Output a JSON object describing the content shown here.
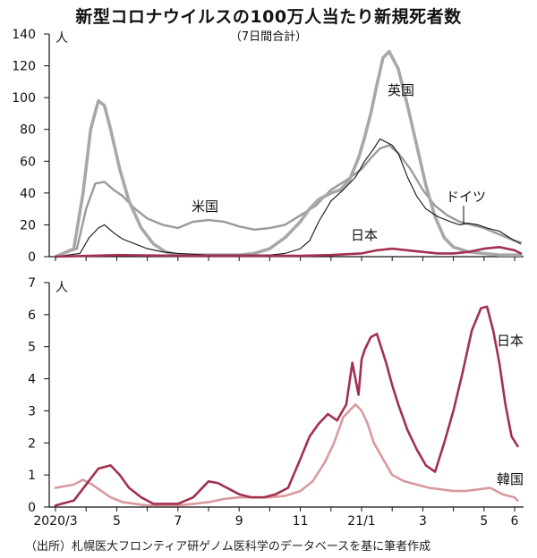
{
  "title": "新型コロナウイルスの100万人当たり新規死者数",
  "subtitle": "（7日間合計）",
  "source": "（出所）札幌医大フロンティア研ゲノム医科学のデータベースを基に筆者作成",
  "x_axis": {
    "labels": [
      "2020/3",
      "5",
      "7",
      "9",
      "11",
      "21/1",
      "3",
      "5",
      "6"
    ],
    "positions": [
      0,
      2,
      4,
      6,
      8,
      10,
      12,
      14,
      15
    ]
  },
  "colors": {
    "uk": "#a8a8a8",
    "us": "#9a9a9a",
    "germany": "#111111",
    "japan": "#a2304e",
    "korea": "#d99a9e"
  },
  "chart_data": [
    {
      "type": "line",
      "title": "",
      "ylabel": "人",
      "ylim": [
        0,
        140
      ],
      "yticks": [
        0,
        20,
        40,
        60,
        80,
        100,
        120,
        140
      ],
      "x_unit": "months since 2020/3",
      "series": [
        {
          "name": "英国",
          "color": "#a8a8a8",
          "x": [
            0,
            0.6,
            0.9,
            1.15,
            1.4,
            1.6,
            1.8,
            2.1,
            2.4,
            2.8,
            3.2,
            3.6,
            4.0,
            4.5,
            5.0,
            5.5,
            6.0,
            6.5,
            7.0,
            7.5,
            8.0,
            8.3,
            8.6,
            9.0,
            9.3,
            9.6,
            9.9,
            10.1,
            10.3,
            10.5,
            10.7,
            10.9,
            11.2,
            11.5,
            11.8,
            12.1,
            12.4,
            12.7,
            13.0,
            13.5,
            14.0,
            14.5,
            15.0,
            15.2
          ],
          "y": [
            0,
            5,
            40,
            80,
            98,
            95,
            80,
            55,
            35,
            18,
            8,
            3,
            1,
            1,
            1,
            1,
            1,
            2,
            5,
            12,
            22,
            30,
            36,
            40,
            42,
            48,
            62,
            75,
            90,
            108,
            125,
            129,
            118,
            95,
            70,
            45,
            25,
            12,
            6,
            3,
            2,
            1,
            1,
            1
          ]
        },
        {
          "name": "米国",
          "color": "#9a9a9a",
          "x": [
            0,
            0.7,
            1.0,
            1.3,
            1.6,
            1.9,
            2.2,
            2.6,
            3.0,
            3.5,
            4.0,
            4.5,
            5.0,
            5.5,
            6.0,
            6.5,
            7.0,
            7.5,
            8.0,
            8.5,
            9.0,
            9.5,
            10.0,
            10.3,
            10.6,
            10.9,
            11.2,
            11.6,
            12.0,
            12.4,
            12.8,
            13.2,
            13.6,
            14.0,
            14.5,
            15.0,
            15.2
          ],
          "y": [
            0,
            5,
            30,
            46,
            47,
            42,
            38,
            30,
            24,
            20,
            18,
            22,
            23,
            22,
            19,
            17,
            18,
            20,
            26,
            32,
            42,
            48,
            55,
            62,
            68,
            70,
            65,
            55,
            42,
            32,
            26,
            22,
            20,
            18,
            14,
            10,
            9
          ]
        },
        {
          "name": "ドイツ",
          "color": "#111111",
          "x": [
            0,
            0.8,
            1.1,
            1.4,
            1.6,
            1.9,
            2.2,
            2.6,
            3.0,
            3.5,
            4.0,
            5.0,
            6.0,
            7.0,
            7.5,
            8.0,
            8.3,
            8.6,
            9.0,
            9.4,
            9.8,
            10.1,
            10.4,
            10.6,
            10.8,
            11.0,
            11.2,
            11.5,
            11.8,
            12.1,
            12.5,
            12.9,
            13.2,
            13.5,
            13.8,
            14.1,
            14.5,
            15.0,
            15.2
          ],
          "y": [
            0,
            2,
            12,
            18,
            20,
            15,
            11,
            8,
            5,
            3,
            2,
            1,
            1,
            1,
            2,
            5,
            10,
            22,
            35,
            42,
            50,
            60,
            68,
            74,
            72,
            70,
            65,
            50,
            38,
            30,
            25,
            22,
            20,
            21,
            20,
            18,
            16,
            10,
            8
          ]
        },
        {
          "name": "日本",
          "color": "#a2304e",
          "x": [
            0,
            2,
            4,
            5,
            6,
            8,
            9,
            10,
            10.5,
            11,
            11.5,
            12,
            12.5,
            13,
            13.5,
            14,
            14.5,
            15,
            15.2
          ],
          "y": [
            0,
            1,
            0.5,
            0.5,
            0.5,
            0.5,
            1,
            2,
            4,
            5,
            4,
            3,
            2,
            2,
            3,
            5,
            6,
            4,
            2
          ]
        }
      ]
    },
    {
      "type": "line",
      "title": "",
      "ylabel": "人",
      "ylim": [
        0,
        7
      ],
      "yticks": [
        0,
        1,
        2,
        3,
        4,
        5,
        6,
        7
      ],
      "x_unit": "months since 2020/3",
      "series": [
        {
          "name": "日本",
          "color": "#a2304e",
          "x": [
            0,
            0.6,
            1.0,
            1.4,
            1.8,
            2.1,
            2.4,
            2.8,
            3.2,
            3.6,
            4.0,
            4.5,
            5.0,
            5.3,
            5.6,
            6.0,
            6.4,
            6.8,
            7.2,
            7.6,
            8.0,
            8.3,
            8.6,
            8.9,
            9.2,
            9.5,
            9.7,
            9.9,
            10.0,
            10.1,
            10.3,
            10.5,
            10.8,
            11.0,
            11.2,
            11.5,
            11.8,
            12.1,
            12.4,
            12.7,
            13.0,
            13.3,
            13.6,
            13.9,
            14.1,
            14.3,
            14.5,
            14.7,
            14.9,
            15.1
          ],
          "y": [
            0.05,
            0.2,
            0.7,
            1.2,
            1.3,
            1.0,
            0.6,
            0.3,
            0.1,
            0.1,
            0.1,
            0.3,
            0.8,
            0.75,
            0.6,
            0.4,
            0.3,
            0.3,
            0.4,
            0.6,
            1.5,
            2.2,
            2.6,
            2.9,
            2.7,
            3.2,
            4.5,
            3.5,
            4.6,
            4.9,
            5.3,
            5.4,
            4.5,
            3.8,
            3.2,
            2.4,
            1.8,
            1.3,
            1.1,
            2.0,
            3.0,
            4.2,
            5.5,
            6.2,
            6.25,
            5.5,
            4.5,
            3.2,
            2.2,
            1.9
          ]
        },
        {
          "name": "韓国",
          "color": "#d99a9e",
          "x": [
            0,
            0.3,
            0.6,
            0.9,
            1.2,
            1.5,
            1.8,
            2.2,
            2.6,
            3.0,
            3.5,
            4.0,
            4.5,
            5.0,
            5.5,
            6.0,
            6.5,
            7.0,
            7.5,
            8.0,
            8.4,
            8.8,
            9.1,
            9.4,
            9.6,
            9.8,
            10.0,
            10.2,
            10.4,
            10.7,
            11.0,
            11.4,
            11.8,
            12.2,
            12.6,
            13.0,
            13.4,
            13.8,
            14.2,
            14.6,
            15.0,
            15.1
          ],
          "y": [
            0.6,
            0.65,
            0.7,
            0.85,
            0.7,
            0.5,
            0.3,
            0.15,
            0.1,
            0.05,
            0.05,
            0.05,
            0.1,
            0.15,
            0.25,
            0.3,
            0.3,
            0.3,
            0.35,
            0.5,
            0.8,
            1.4,
            2.0,
            2.8,
            3.0,
            3.2,
            3.0,
            2.6,
            2.0,
            1.5,
            1.0,
            0.8,
            0.7,
            0.6,
            0.55,
            0.5,
            0.5,
            0.55,
            0.6,
            0.4,
            0.3,
            0.2
          ]
        }
      ]
    }
  ]
}
